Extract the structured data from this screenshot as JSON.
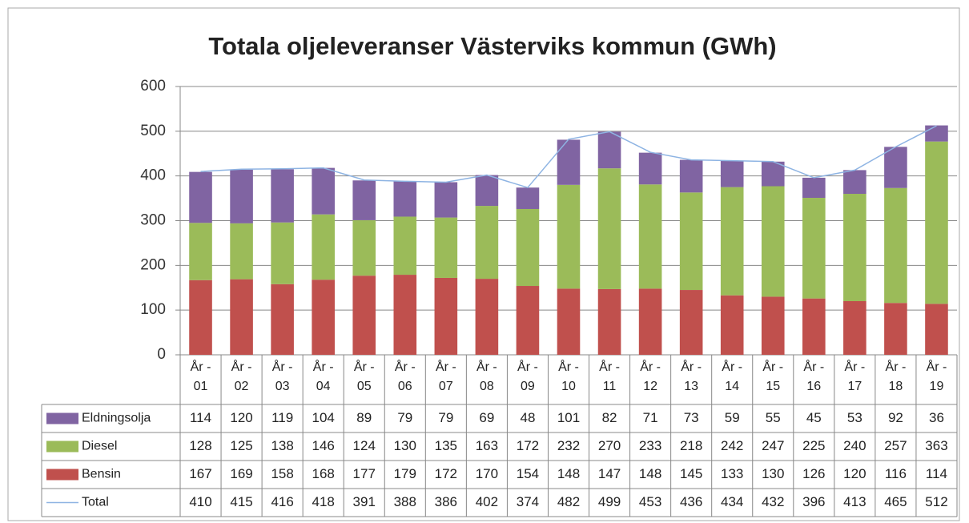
{
  "chart_data": {
    "type": "bar",
    "stacked": true,
    "title": "Totala oljeleveranser Västerviks kommun (GWh)",
    "categories": [
      "År - 01",
      "År - 02",
      "År - 03",
      "År - 04",
      "År - 05",
      "År - 06",
      "År - 07",
      "År - 08",
      "År - 09",
      "År - 10",
      "År - 11",
      "År - 12",
      "År - 13",
      "År - 14",
      "År - 15",
      "År - 16",
      "År - 17",
      "År - 18",
      "År - 19"
    ],
    "series": [
      {
        "name": "Eldningsolja",
        "color": "#8064a2",
        "values": [
          114,
          120,
          119,
          104,
          89,
          79,
          79,
          69,
          48,
          101,
          82,
          71,
          73,
          59,
          55,
          45,
          53,
          92,
          36
        ]
      },
      {
        "name": "Diesel",
        "color": "#9bbb59",
        "values": [
          128,
          125,
          138,
          146,
          124,
          130,
          135,
          163,
          172,
          232,
          270,
          233,
          218,
          242,
          247,
          225,
          240,
          257,
          363
        ]
      },
      {
        "name": "Bensin",
        "color": "#c0504d",
        "values": [
          167,
          169,
          158,
          168,
          177,
          179,
          172,
          170,
          154,
          148,
          147,
          148,
          145,
          133,
          130,
          126,
          120,
          116,
          114
        ]
      },
      {
        "name": "Total",
        "color": "#8eb4e3",
        "type": "line",
        "values": [
          410,
          415,
          416,
          418,
          391,
          388,
          386,
          402,
          374,
          482,
          499,
          453,
          436,
          434,
          432,
          396,
          413,
          465,
          512
        ]
      }
    ],
    "ylim": [
      0,
      600
    ],
    "yticks": [
      0,
      100,
      200,
      300,
      400,
      500,
      600
    ],
    "grid": true,
    "data_table": true
  }
}
